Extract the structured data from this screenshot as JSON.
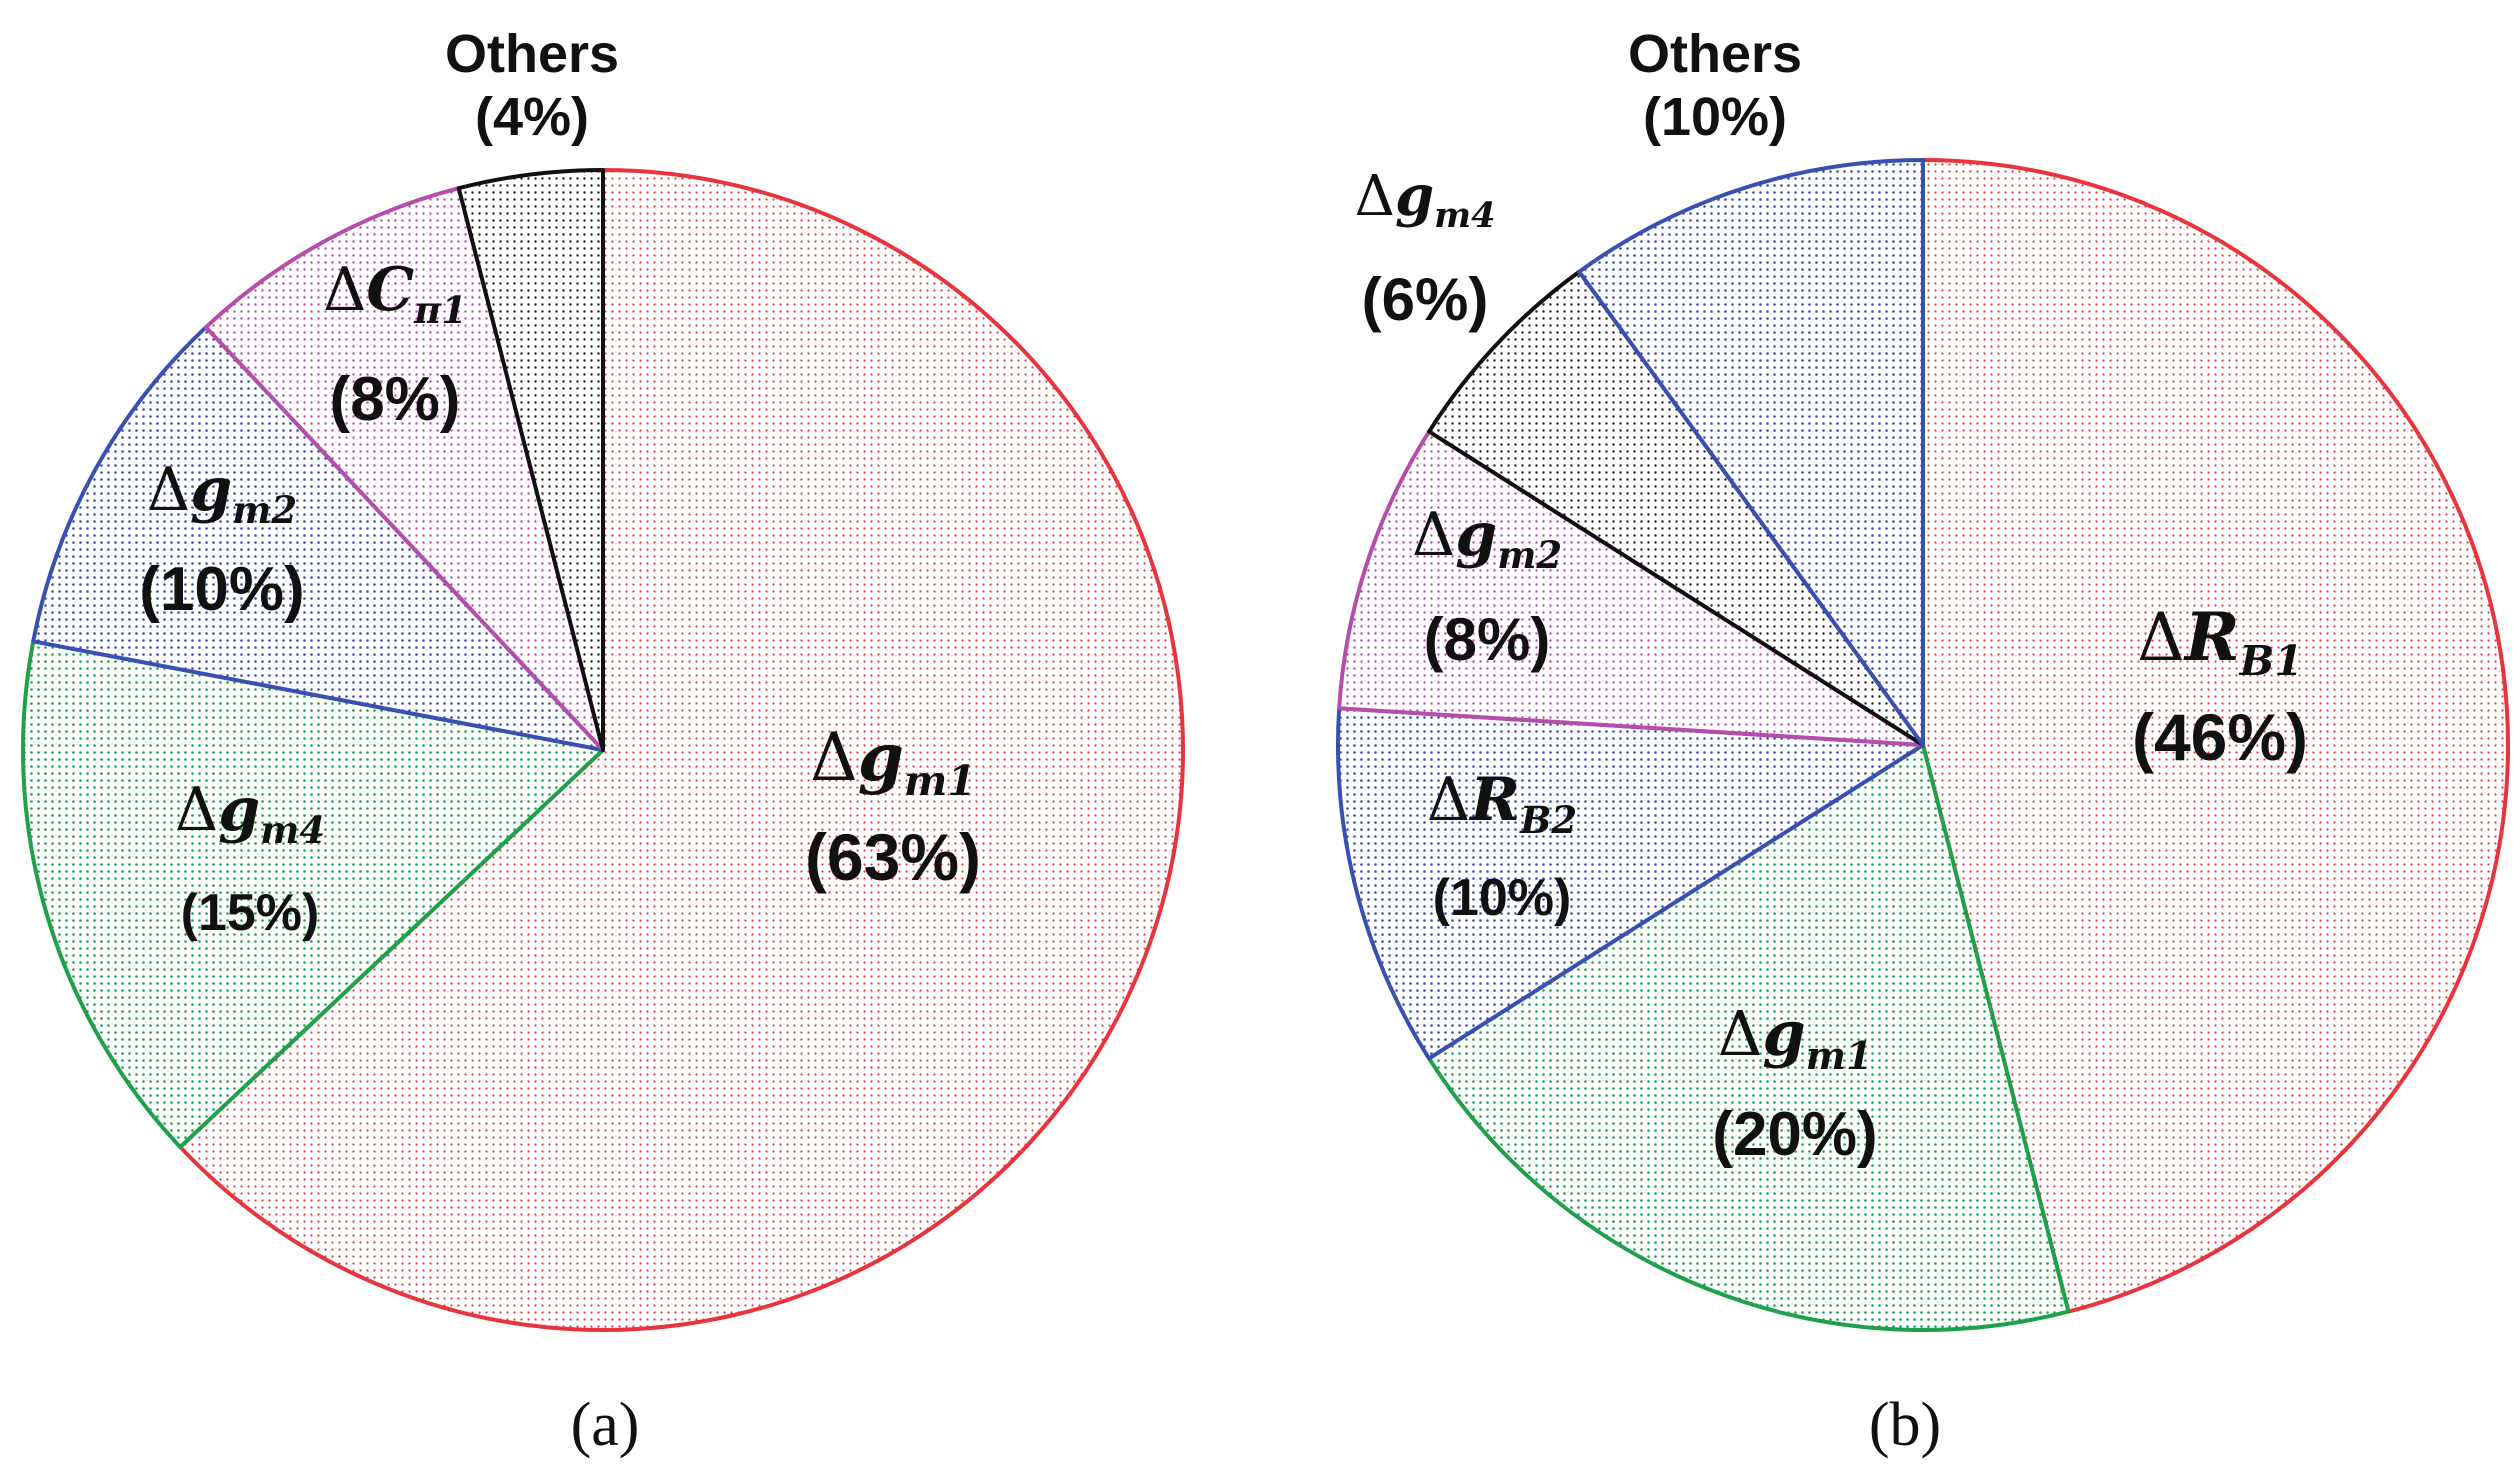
{
  "chart_data": [
    {
      "type": "pie",
      "caption": "(a)",
      "slices": [
        {
          "symbol": "Δ",
          "main": "g",
          "sub": "m1",
          "percent_label": "(63%)",
          "value": 63,
          "color": "#e8353d"
        },
        {
          "symbol": "Δ",
          "main": "g",
          "sub": "m4",
          "percent_label": "(15%)",
          "value": 15,
          "color": "#1fa04a"
        },
        {
          "symbol": "Δ",
          "main": "g",
          "sub": "m2",
          "percent_label": "(10%)",
          "value": 10,
          "color": "#3a4fb2"
        },
        {
          "symbol": "Δ",
          "main": "C",
          "sub": "π1",
          "percent_label": "(8%)",
          "value": 8,
          "color": "#b54dab"
        },
        {
          "symbol": "",
          "main": "Others",
          "sub": "",
          "percent_label": "(4%)",
          "value": 4,
          "color": "#111111"
        }
      ]
    },
    {
      "type": "pie",
      "caption": "(b)",
      "slices": [
        {
          "symbol": "Δ",
          "main": "R",
          "sub": "B1",
          "percent_label": "(46%)",
          "value": 46,
          "color": "#e8353d"
        },
        {
          "symbol": "Δ",
          "main": "g",
          "sub": "m1",
          "percent_label": "(20%)",
          "value": 20,
          "color": "#1fa04a"
        },
        {
          "symbol": "Δ",
          "main": "R",
          "sub": "B2",
          "percent_label": "(10%)",
          "value": 10,
          "color": "#3a4fb2"
        },
        {
          "symbol": "Δ",
          "main": "g",
          "sub": "m2",
          "percent_label": "(8%)",
          "value": 8,
          "color": "#b54dab"
        },
        {
          "symbol": "Δ",
          "main": "g",
          "sub": "m4",
          "percent_label": "(6%)",
          "value": 6,
          "color": "#111111"
        },
        {
          "symbol": "",
          "main": "Others",
          "sub": "",
          "percent_label": "(10%)",
          "value": 10,
          "color": "#3a4fb2"
        }
      ]
    }
  ]
}
